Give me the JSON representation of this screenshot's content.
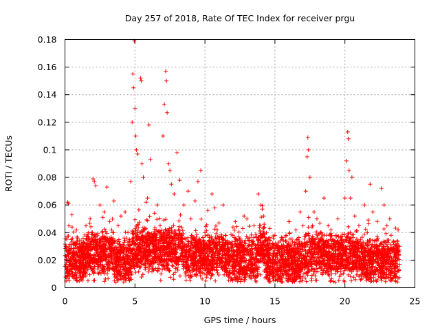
{
  "chart_data": {
    "type": "scatter",
    "title": "Day 257 of 2018, Rate Of TEC Index for receiver prgu",
    "xlabel": "GPS time / hours",
    "ylabel": "ROTI / TECUs",
    "xlim": [
      0,
      25
    ],
    "ylim": [
      0,
      0.18
    ],
    "xticks": [
      "0",
      "5",
      "10",
      "15",
      "20",
      "25"
    ],
    "yticks": [
      "0",
      "0.02",
      "0.04",
      "0.06",
      "0.08",
      "0.1",
      "0.12",
      "0.14",
      "0.16",
      "0.18"
    ],
    "grid": true,
    "marker": "plus",
    "color": "#ff0000",
    "series": [
      {
        "points": [
          [
            0.1,
            0.013
          ],
          [
            0.2,
            0.062
          ],
          [
            0.25,
            0.061
          ],
          [
            0.3,
            0.025
          ],
          [
            0.5,
            0.053
          ],
          [
            0.6,
            0.02
          ],
          [
            0.9,
            0.036
          ],
          [
            1.2,
            0.018
          ],
          [
            1.5,
            0.045
          ],
          [
            1.8,
            0.05
          ],
          [
            2.0,
            0.079
          ],
          [
            2.1,
            0.077
          ],
          [
            2.2,
            0.074
          ],
          [
            2.5,
            0.06
          ],
          [
            2.8,
            0.055
          ],
          [
            3.0,
            0.073
          ],
          [
            3.2,
            0.048
          ],
          [
            3.5,
            0.063
          ],
          [
            3.8,
            0.045
          ],
          [
            4.0,
            0.052
          ],
          [
            4.3,
            0.055
          ],
          [
            4.5,
            0.04
          ],
          [
            4.7,
            0.077
          ],
          [
            4.8,
            0.12
          ],
          [
            4.85,
            0.155
          ],
          [
            4.9,
            0.145
          ],
          [
            4.95,
            0.179
          ],
          [
            5.0,
            0.13
          ],
          [
            5.05,
            0.11
          ],
          [
            5.1,
            0.1
          ],
          [
            5.2,
            0.097
          ],
          [
            5.4,
            0.152
          ],
          [
            5.45,
            0.15
          ],
          [
            5.5,
            0.09
          ],
          [
            5.6,
            0.08
          ],
          [
            5.8,
            0.062
          ],
          [
            5.9,
            0.065
          ],
          [
            6.0,
            0.118
          ],
          [
            6.1,
            0.093
          ],
          [
            6.4,
            0.054
          ],
          [
            6.6,
            0.06
          ],
          [
            6.8,
            0.045
          ],
          [
            7.0,
            0.11
          ],
          [
            7.1,
            0.133
          ],
          [
            7.2,
            0.157
          ],
          [
            7.25,
            0.15
          ],
          [
            7.3,
            0.127
          ],
          [
            7.4,
            0.09
          ],
          [
            7.5,
            0.085
          ],
          [
            7.6,
            0.075
          ],
          [
            7.8,
            0.068
          ],
          [
            8.0,
            0.098
          ],
          [
            8.2,
            0.078
          ],
          [
            8.5,
            0.06
          ],
          [
            8.8,
            0.07
          ],
          [
            9.0,
            0.05
          ],
          [
            9.3,
            0.063
          ],
          [
            9.5,
            0.077
          ],
          [
            9.7,
            0.085
          ],
          [
            10.0,
            0.04
          ],
          [
            10.2,
            0.056
          ],
          [
            10.5,
            0.068
          ],
          [
            10.7,
            0.058
          ],
          [
            11.0,
            0.047
          ],
          [
            11.3,
            0.06
          ],
          [
            11.5,
            0.038
          ],
          [
            12.0,
            0.044
          ],
          [
            12.5,
            0.032
          ],
          [
            12.8,
            0.052
          ],
          [
            13.0,
            0.05
          ],
          [
            13.5,
            0.045
          ],
          [
            13.8,
            0.068
          ],
          [
            14.0,
            0.06
          ],
          [
            14.1,
            0.057
          ],
          [
            14.2,
            0.052
          ],
          [
            14.5,
            0.035
          ],
          [
            15.0,
            0.038
          ],
          [
            15.3,
            0.02
          ],
          [
            15.5,
            0.035
          ],
          [
            16.0,
            0.048
          ],
          [
            16.5,
            0.042
          ],
          [
            16.8,
            0.055
          ],
          [
            17.0,
            0.045
          ],
          [
            17.2,
            0.07
          ],
          [
            17.3,
            0.095
          ],
          [
            17.35,
            0.109
          ],
          [
            17.4,
            0.1
          ],
          [
            17.5,
            0.08
          ],
          [
            17.6,
            0.005
          ],
          [
            17.8,
            0.055
          ],
          [
            18.0,
            0.05
          ],
          [
            18.3,
            0.04
          ],
          [
            18.5,
            0.065
          ],
          [
            18.8,
            0.045
          ],
          [
            19.0,
            0.042
          ],
          [
            19.5,
            0.05
          ],
          [
            20.0,
            0.065
          ],
          [
            20.1,
            0.092
          ],
          [
            20.2,
            0.113
          ],
          [
            20.25,
            0.108
          ],
          [
            20.3,
            0.085
          ],
          [
            20.4,
            0.065
          ],
          [
            20.5,
            0.08
          ],
          [
            20.7,
            0.052
          ],
          [
            21.0,
            0.045
          ],
          [
            21.4,
            0.06
          ],
          [
            21.6,
            0.04
          ],
          [
            21.8,
            0.075
          ],
          [
            22.0,
            0.055
          ],
          [
            22.3,
            0.048
          ],
          [
            22.6,
            0.072
          ],
          [
            22.8,
            0.06
          ],
          [
            23.0,
            0.045
          ],
          [
            23.2,
            0.05
          ],
          [
            23.3,
            0.038
          ],
          [
            23.5,
            0.028
          ],
          [
            23.7,
            0.025
          ],
          [
            23.8,
            0.042
          ],
          [
            23.9,
            0.03
          ],
          [
            0.05,
            0.03
          ]
        ]
      }
    ]
  }
}
